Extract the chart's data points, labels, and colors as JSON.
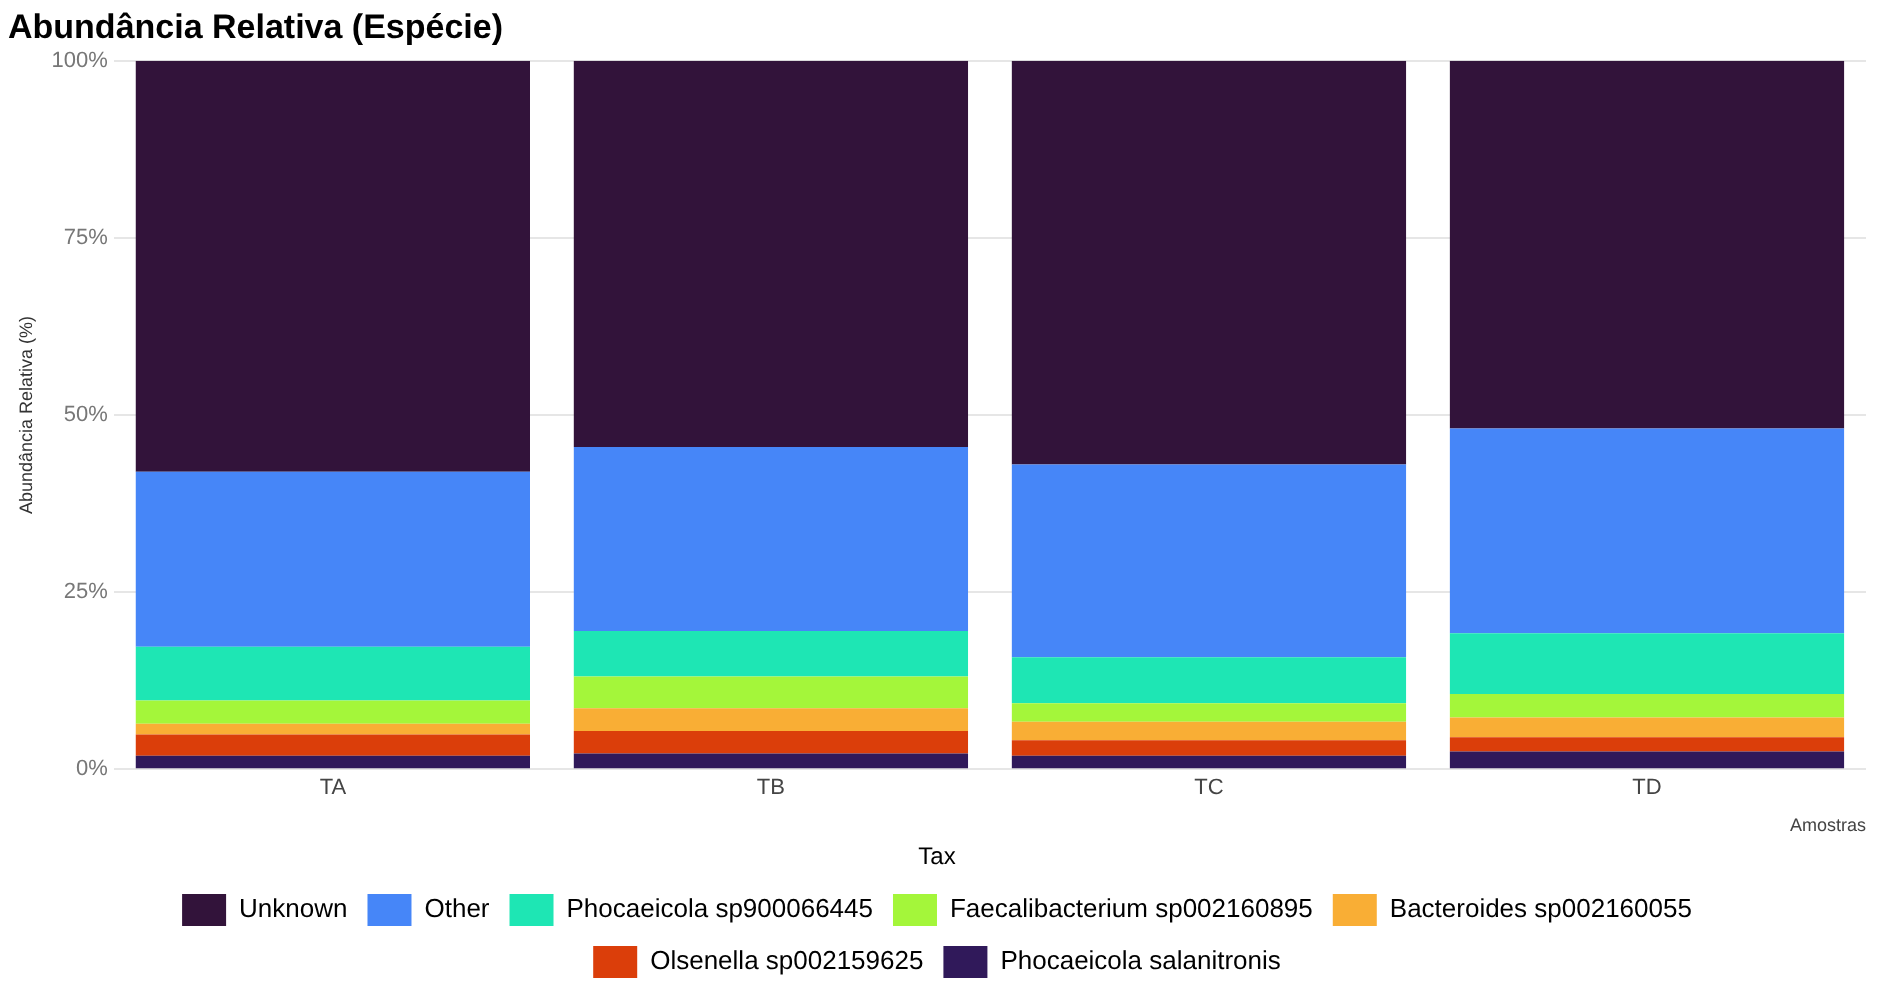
{
  "chart_data": {
    "type": "bar",
    "title": "Abundância Relativa (Espécie)",
    "xlabel": "Amostras",
    "ylabel": "Abundância Relativa (%)",
    "legend_title": "Tax",
    "categories": [
      "TA",
      "TB",
      "TC",
      "TD"
    ],
    "stacked": true,
    "series": [
      {
        "name": "Phocaeicola salanitronis",
        "color": "#30195a",
        "values": [
          1.9,
          2.2,
          1.9,
          2.5
        ]
      },
      {
        "name": "Olsenella sp002159625",
        "color": "#db3e0a",
        "values": [
          3.0,
          3.2,
          2.2,
          2.0
        ]
      },
      {
        "name": "Bacteroides sp002160055",
        "color": "#f9ae35",
        "values": [
          1.5,
          3.2,
          2.6,
          2.8
        ]
      },
      {
        "name": "Faecalibacterium sp002160895",
        "color": "#a4f63a",
        "values": [
          3.3,
          4.5,
          2.6,
          3.3
        ]
      },
      {
        "name": "Phocaeicola sp900066445",
        "color": "#1ee6b4",
        "values": [
          7.6,
          6.4,
          6.5,
          8.6
        ]
      },
      {
        "name": "Other",
        "color": "#4686f8",
        "values": [
          24.7,
          26.0,
          27.2,
          28.9
        ]
      },
      {
        "name": "Unknown",
        "color": "#32133a",
        "values": [
          58.0,
          54.5,
          57.0,
          51.9
        ]
      }
    ],
    "ylim": [
      0,
      100
    ],
    "yticks": [
      {
        "value": 0,
        "label": "0%"
      },
      {
        "value": 25,
        "label": "25%"
      },
      {
        "value": 50,
        "label": "50%"
      },
      {
        "value": 75,
        "label": "75%"
      },
      {
        "value": 100,
        "label": "100%"
      }
    ],
    "grid": "y",
    "legend": "bottom"
  }
}
